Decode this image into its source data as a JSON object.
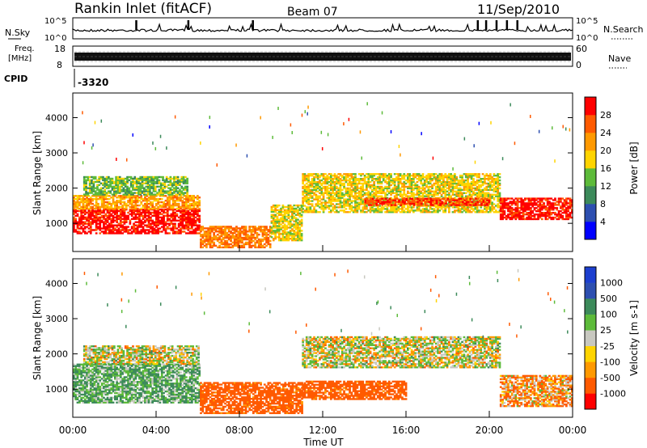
{
  "header": {
    "station": "Rankin Inlet (fitACF)",
    "beam": "Beam 07",
    "date": "11/Sep/2010"
  },
  "summary": {
    "nsky_label": "N.Sky",
    "nsearch_label": "N.Search",
    "freq_label_1": "Freq.",
    "freq_label_2": "[MHz]",
    "nave_label": "Nave",
    "cpid_label": "CPID",
    "cpid_value": "-3320",
    "noise_ticks": [
      "10^5",
      "10^0"
    ],
    "freq_ticks": [
      "18",
      "8"
    ],
    "nave_ticks": [
      "60",
      "0"
    ]
  },
  "colors": {
    "power_scale": [
      "#0000ff",
      "#2d4fb0",
      "#3c8a5a",
      "#5dbb3a",
      "#ffd400",
      "#ff9900",
      "#ff5a00",
      "#ff0000"
    ],
    "velocity_scale": [
      "#ff0000",
      "#ff5a00",
      "#ff9900",
      "#ffd400",
      "#c8c8c0",
      "#5dbb3a",
      "#3c8a5a",
      "#2d4fb0",
      "#1c3fcf"
    ]
  },
  "chart_data": [
    {
      "type": "heatmap",
      "panel": "power",
      "xlabel": "",
      "ylabel": "Slant Range [km]",
      "x_ticks": [
        "00:00",
        "04:00",
        "08:00",
        "12:00",
        "16:00",
        "20:00",
        "00:00"
      ],
      "y_ticks": [
        1000,
        2000,
        3000,
        4000
      ],
      "ylim": [
        200,
        4700
      ],
      "colorbar": {
        "label": "Power [dB]",
        "ticks": [
          4,
          8,
          12,
          16,
          20,
          24,
          28
        ]
      },
      "regions": [
        {
          "t0": 0.0,
          "t1": 6.1,
          "r0": 700,
          "r1": 1400,
          "value": 28
        },
        {
          "t0": 0.0,
          "t1": 6.1,
          "r0": 1400,
          "r1": 1800,
          "value": 20
        },
        {
          "t0": 0.5,
          "t1": 5.5,
          "r0": 1800,
          "r1": 2300,
          "value": 12
        },
        {
          "t0": 6.1,
          "t1": 9.5,
          "r0": 300,
          "r1": 900,
          "value": 22
        },
        {
          "t0": 9.5,
          "t1": 11.0,
          "r0": 500,
          "r1": 1500,
          "value": 16
        },
        {
          "t0": 11.0,
          "t1": 20.5,
          "r0": 1300,
          "r1": 2400,
          "value": 16
        },
        {
          "t0": 14.0,
          "t1": 20.0,
          "r0": 1500,
          "r1": 1700,
          "value": 26
        },
        {
          "t0": 20.5,
          "t1": 24.0,
          "r0": 1100,
          "r1": 1700,
          "value": 28
        }
      ]
    },
    {
      "type": "heatmap",
      "panel": "velocity",
      "xlabel": "Time UT",
      "ylabel": "Slant Range [km]",
      "x_ticks": [
        "00:00",
        "04:00",
        "08:00",
        "12:00",
        "16:00",
        "20:00",
        "00:00"
      ],
      "y_ticks": [
        1000,
        2000,
        3000,
        4000
      ],
      "ylim": [
        200,
        4700
      ],
      "colorbar": {
        "label": "Velocity [m s-1]",
        "ticks": [
          "1000",
          "500",
          "100",
          "25",
          "-25",
          "-100",
          "-500",
          "-1000"
        ]
      },
      "regions": [
        {
          "t0": 0.0,
          "t1": 6.1,
          "r0": 600,
          "r1": 1700,
          "value": 100
        },
        {
          "t0": 0.5,
          "t1": 6.0,
          "r0": 1700,
          "r1": 2200,
          "value": 0
        },
        {
          "t0": 6.1,
          "t1": 11.0,
          "r0": 300,
          "r1": 1200,
          "value": -200
        },
        {
          "t0": 11.0,
          "t1": 20.5,
          "r0": 1600,
          "r1": 2500,
          "value": 0
        },
        {
          "t0": 11.0,
          "t1": 16.0,
          "r0": 700,
          "r1": 1200,
          "value": -200
        },
        {
          "t0": 20.5,
          "t1": 24.0,
          "r0": 500,
          "r1": 1400,
          "value": -80
        }
      ]
    }
  ]
}
